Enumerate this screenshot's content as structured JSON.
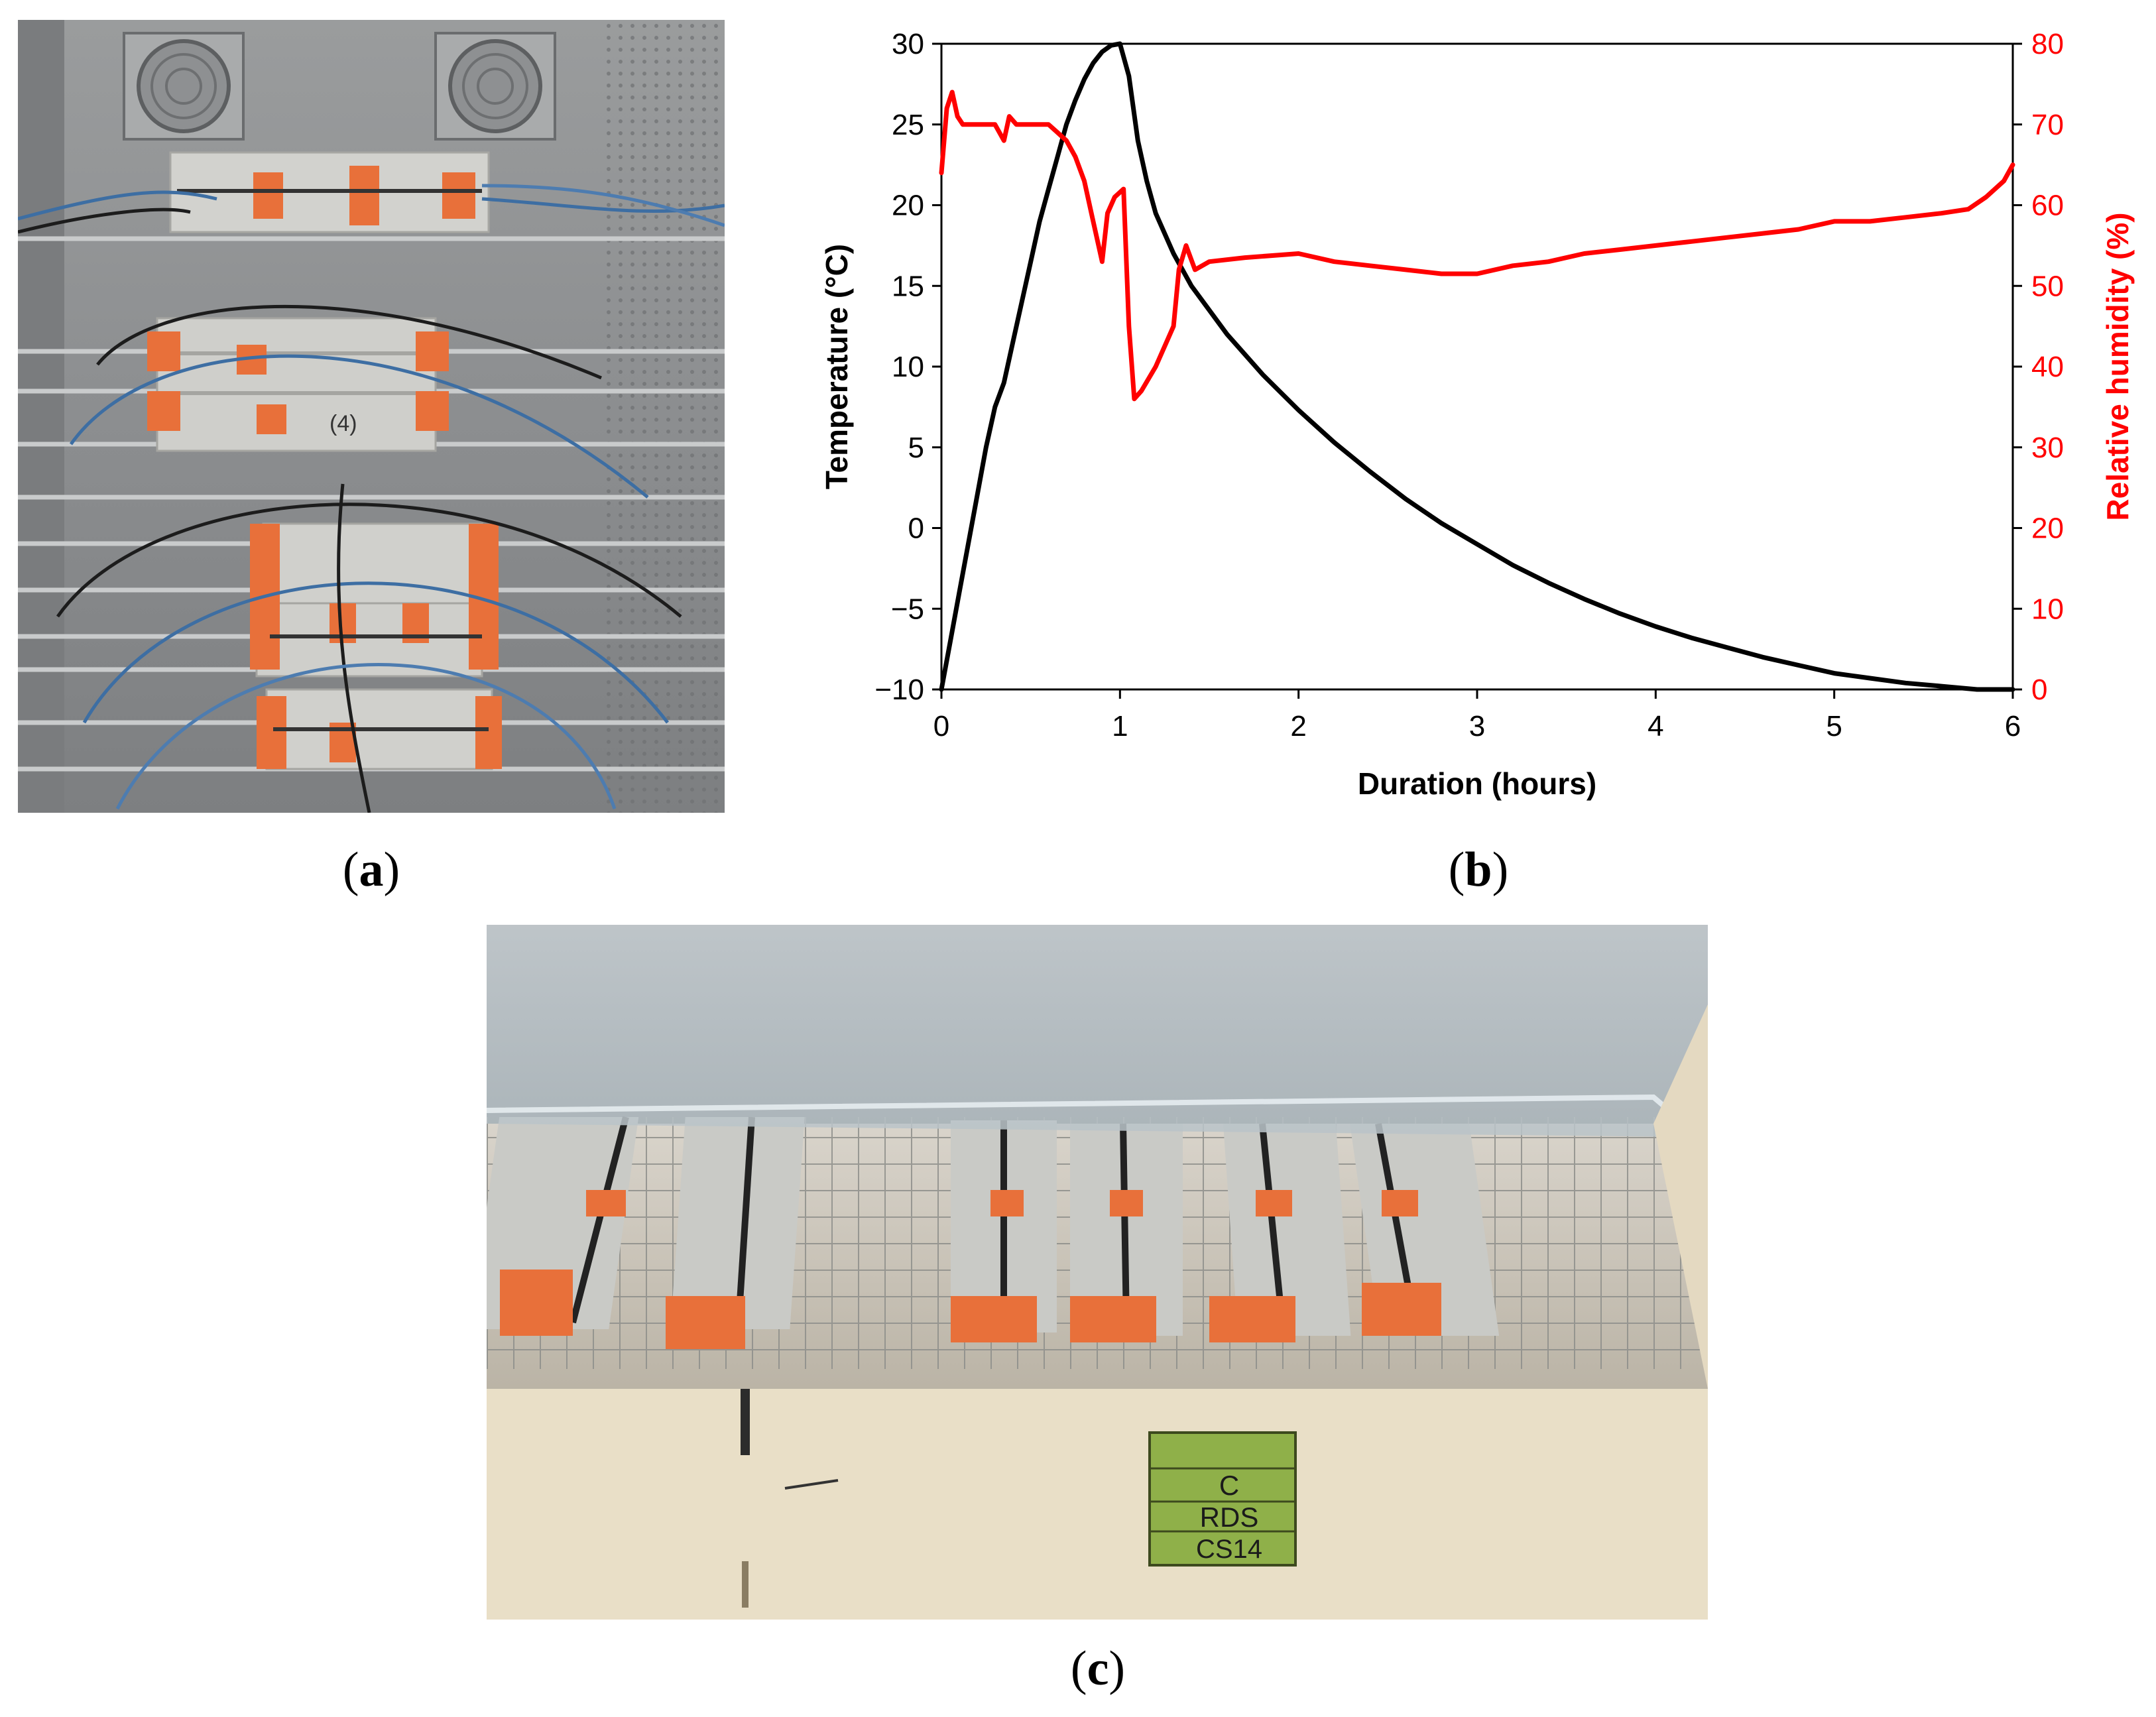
{
  "captions": {
    "a": "a",
    "b": "b",
    "c": "c"
  },
  "photo_c": {
    "label_lines": [
      "C",
      "RDS",
      "CS14"
    ]
  },
  "photo_a": {
    "marker_text": "(4)"
  },
  "colors": {
    "temperature": "#000000",
    "humidity": "#ff0000",
    "tape": "#e8703a",
    "concrete": "#cfcfcb"
  },
  "chart_data": {
    "type": "line",
    "xlabel": "Duration (hours)",
    "ylabel": "Temperature (°C)",
    "y2label": "Relative humidity (%)",
    "xlim": [
      0,
      6
    ],
    "ylim": [
      -10,
      30
    ],
    "y2lim": [
      0,
      80
    ],
    "xticks": [
      0,
      1,
      2,
      3,
      4,
      5,
      6
    ],
    "yticks": [
      -10,
      -5,
      0,
      5,
      10,
      15,
      20,
      25,
      30
    ],
    "y2ticks": [
      0,
      10,
      20,
      30,
      40,
      50,
      60,
      70,
      80
    ],
    "grid": false,
    "legend": "none",
    "series": [
      {
        "axis": "left",
        "color": "#000000",
        "x": [
          0.0,
          0.05,
          0.1,
          0.15,
          0.2,
          0.25,
          0.3,
          0.35,
          0.4,
          0.45,
          0.5,
          0.55,
          0.6,
          0.65,
          0.7,
          0.75,
          0.8,
          0.85,
          0.9,
          0.95,
          1.0,
          1.05,
          1.1,
          1.15,
          1.2,
          1.3,
          1.4,
          1.5,
          1.6,
          1.8,
          2.0,
          2.2,
          2.4,
          2.6,
          2.8,
          3.0,
          3.2,
          3.4,
          3.6,
          3.8,
          4.0,
          4.2,
          4.4,
          4.6,
          4.8,
          5.0,
          5.2,
          5.4,
          5.6,
          5.8,
          6.0
        ],
        "y": [
          -10.0,
          -7.0,
          -4.0,
          -1.0,
          2.0,
          5.0,
          7.5,
          9.0,
          11.5,
          14.0,
          16.5,
          19.0,
          21.0,
          23.0,
          25.0,
          26.5,
          27.8,
          28.8,
          29.5,
          29.9,
          30.0,
          28.0,
          24.0,
          21.5,
          19.5,
          17.0,
          15.0,
          13.5,
          12.0,
          9.5,
          7.3,
          5.3,
          3.5,
          1.8,
          0.3,
          -1.0,
          -2.3,
          -3.4,
          -4.4,
          -5.3,
          -6.1,
          -6.8,
          -7.4,
          -8.0,
          -8.5,
          -9.0,
          -9.3,
          -9.6,
          -9.8,
          -10.0,
          -10.0
        ]
      },
      {
        "axis": "right",
        "color": "#ff0000",
        "x": [
          0.0,
          0.03,
          0.06,
          0.09,
          0.12,
          0.2,
          0.3,
          0.35,
          0.38,
          0.42,
          0.5,
          0.6,
          0.65,
          0.7,
          0.75,
          0.8,
          0.85,
          0.9,
          0.93,
          0.97,
          1.02,
          1.05,
          1.08,
          1.12,
          1.2,
          1.3,
          1.33,
          1.37,
          1.42,
          1.5,
          1.7,
          2.0,
          2.2,
          2.4,
          2.6,
          2.8,
          3.0,
          3.2,
          3.4,
          3.6,
          3.8,
          4.0,
          4.2,
          4.4,
          4.6,
          4.8,
          5.0,
          5.2,
          5.4,
          5.6,
          5.75,
          5.85,
          5.95,
          6.0
        ],
        "y": [
          64,
          72,
          74,
          71,
          70,
          70,
          70,
          68,
          71,
          70,
          70,
          70,
          69,
          68,
          66,
          63,
          58,
          53,
          59,
          61,
          62,
          45,
          36,
          37,
          40,
          45,
          52,
          55,
          52,
          53,
          53.5,
          54,
          53,
          52.5,
          52,
          51.5,
          51.5,
          52.5,
          53,
          54,
          54.5,
          55,
          55.5,
          56,
          56.5,
          57,
          58,
          58,
          58.5,
          59,
          59.5,
          61,
          63,
          65
        ]
      }
    ]
  }
}
